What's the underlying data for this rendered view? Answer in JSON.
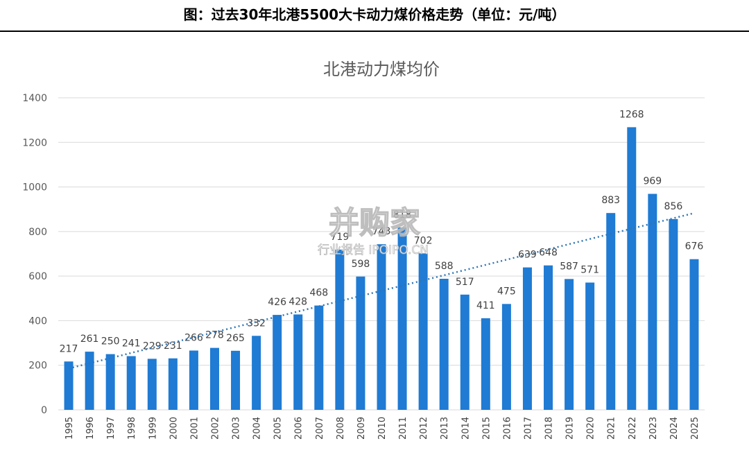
{
  "header": {
    "title": "图：过去30年北港5500大卡动力煤价格走势（单位：元/吨）"
  },
  "watermark": {
    "main": "并购家",
    "sub": "行业报告 IPOIPO.CN"
  },
  "colors": {
    "bar": "#1f7bd4",
    "trend": "#2e75b6",
    "grid": "#d9d9d9"
  },
  "chart_data": {
    "type": "bar",
    "title": "北港动力煤均价",
    "xlabel": "",
    "ylabel": "",
    "ylim": [
      0,
      1400
    ],
    "yticks": [
      0,
      200,
      400,
      600,
      800,
      1000,
      1200,
      1400
    ],
    "grid": true,
    "legend": "none",
    "trendline": "linear",
    "categories": [
      "1995",
      "1996",
      "1997",
      "1998",
      "1999",
      "2000",
      "2001",
      "2002",
      "2003",
      "2004",
      "2005",
      "2006",
      "2007",
      "2008",
      "2009",
      "2010",
      "2011",
      "2012",
      "2013",
      "2014",
      "2015",
      "2016",
      "2017",
      "2018",
      "2019",
      "2020",
      "2021",
      "2022",
      "2023",
      "2024",
      "2025"
    ],
    "values": [
      217,
      261,
      250,
      241,
      229,
      231,
      266,
      278,
      265,
      332,
      426,
      428,
      468,
      719,
      598,
      743,
      818,
      702,
      588,
      517,
      411,
      475,
      639,
      648,
      587,
      571,
      883,
      1268,
      969,
      856,
      676
    ]
  }
}
